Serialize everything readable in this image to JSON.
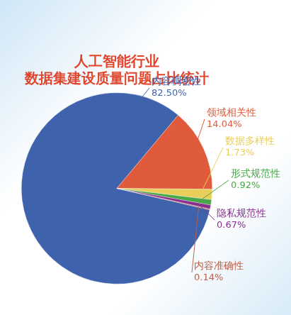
{
  "chart_data": {
    "type": "pie",
    "title": [
      "人工智能行业",
      "数据集建设质量问题占比统计"
    ],
    "categories": [
      "内容稠密性",
      "领域相关性",
      "数据多样性",
      "形式规范性",
      "隐私规范性",
      "内容准确性"
    ],
    "values": [
      82.5,
      14.04,
      1.73,
      0.92,
      0.67,
      0.14
    ],
    "value_labels": [
      "82.50%",
      "14.04%",
      "1.73%",
      "0.92%",
      "0.67%",
      "0.14%"
    ],
    "colors": [
      "#3f62ad",
      "#e05a3c",
      "#e9cf5a",
      "#4aa84a",
      "#8b2f8e",
      "#b9614a"
    ],
    "data_labels": true
  }
}
